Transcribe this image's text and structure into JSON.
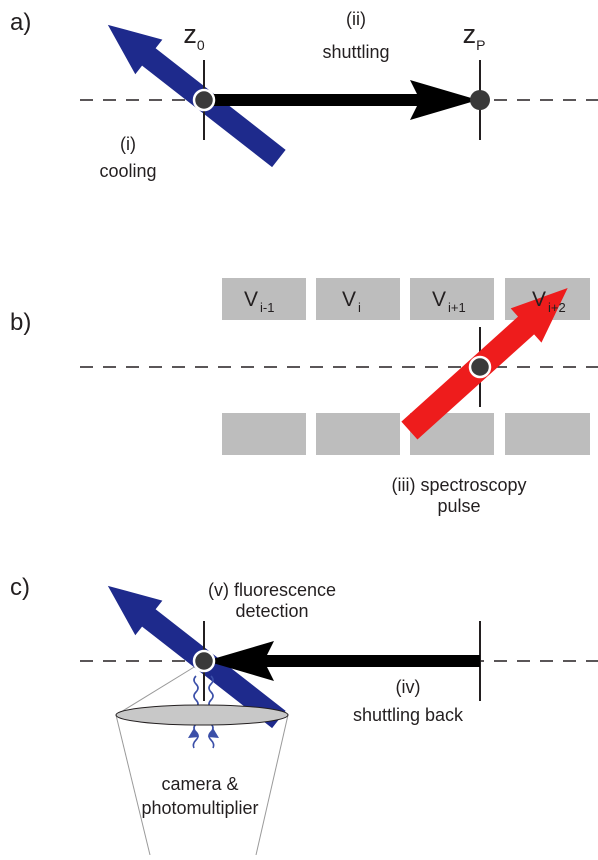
{
  "panel_a": {
    "label": "a)",
    "z0_main": "z",
    "z0_sub": "0",
    "zp_main": "z",
    "zp_sub": "P",
    "step_i_num": "(i)",
    "step_i_text": "cooling",
    "step_ii_num": "(ii)",
    "step_ii_text": "shuttling"
  },
  "panel_b": {
    "label": "b)",
    "electrodes": [
      {
        "main": "V",
        "sub": "i-1"
      },
      {
        "main": "V",
        "sub": "i"
      },
      {
        "main": "V",
        "sub": "i+1"
      },
      {
        "main": "V",
        "sub": "i+2"
      }
    ],
    "step_iii_line1": "(iii) spectroscopy",
    "step_iii_line2": "pulse"
  },
  "panel_c": {
    "label": "c)",
    "step_v_line1": "(v) fluorescence",
    "step_v_line2": "detection",
    "step_iv_num": "(iv)",
    "step_iv_text": "shuttling back",
    "detector_line1": "camera &",
    "detector_line2": "photomultiplier"
  },
  "colors": {
    "cooling_beam": "#1e2a8c",
    "spectroscopy_beam": "#ee1c1c",
    "electrode": "#bdbdbd",
    "ion": "#3a3a3a",
    "arrow": "#000000",
    "photon": "#3b4fa8",
    "lens": "#c8c8c8"
  }
}
